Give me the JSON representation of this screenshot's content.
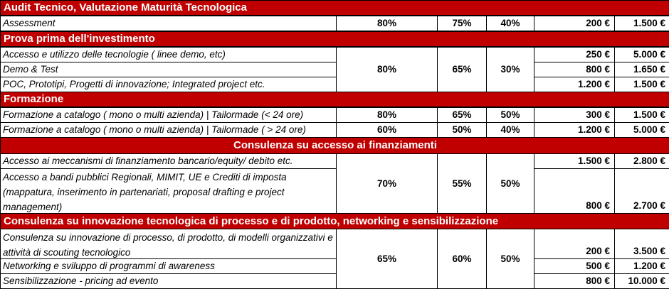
{
  "sections": {
    "audit": {
      "title": "Audit Tecnico, Valutazione Maturità Tecnologica",
      "rows": [
        {
          "desc": "Assessment",
          "pct1": "80%",
          "pct2": "75%",
          "pct3": "40%",
          "price1": "200 €",
          "price2": "1.500 €"
        }
      ]
    },
    "prova": {
      "title": "Prova prima dell'investimento",
      "rows": [
        {
          "desc": "Accesso e utilizzo delle tecnologie ( linee demo, etc)",
          "price1": "250 €",
          "price2": "5.000 €"
        },
        {
          "desc": "Demo & Test",
          "price1": "800 €",
          "price2": "1.650 €"
        },
        {
          "desc": "POC, Prototipi, Progetti di innovazione; Integrated project etc.",
          "price1": "1.200 €",
          "price2": "1.500 €"
        }
      ],
      "pct1": "80%",
      "pct2": "65%",
      "pct3": "30%"
    },
    "formazione": {
      "title": "Formazione",
      "rows": [
        {
          "desc": "Formazione a catalogo ( mono o multi azienda) | Tailormade (<  24 ore)",
          "pct1": "80%",
          "pct2": "65%",
          "pct3": "50%",
          "price1": "300 €",
          "price2": "1.500 €"
        },
        {
          "desc": "Formazione a catalogo ( mono o multi azienda) | Tailormade ( > 24 ore)",
          "pct1": "60%",
          "pct2": "50%",
          "pct3": "40%",
          "price1": "1.200 €",
          "price2": "5.000 €"
        }
      ]
    },
    "finanziamenti": {
      "title": "Consulenza su accesso ai finanziamenti",
      "rows": [
        {
          "desc": "Accesso ai meccanismi di finanziamento bancario/equity/ debito etc.",
          "price1": "1.500 €",
          "price2": "2.800 €"
        },
        {
          "desc": "Accesso a bandi pubblici Regionali, MIMIT, UE e Crediti di imposta (mappatura, inserimento in partenariati, proposal drafting e project management)",
          "price1": "800 €",
          "price2": "2.700 €"
        }
      ],
      "pct1": "70%",
      "pct2": "55%",
      "pct3": "50%"
    },
    "innovazione": {
      "title": "Consulenza su innovazione tecnologica di processo e di prodotto, networking e sensibilizzazione",
      "rows": [
        {
          "desc": "Consulenza su innovazione di processo, di prodotto, di modelli organizzativi e attività di scouting tecnologico",
          "price1": "200 €",
          "price2": "3.500 €"
        },
        {
          "desc": "Networking e sviluppo di programmi di awareness",
          "price1": "500 €",
          "price2": "1.200 €"
        },
        {
          "desc": "Sensibilizzazione - pricing ad evento",
          "price1": "800 €",
          "price2": "10.000 €"
        }
      ],
      "pct1": "65%",
      "pct2": "60%",
      "pct3": "50%"
    }
  }
}
